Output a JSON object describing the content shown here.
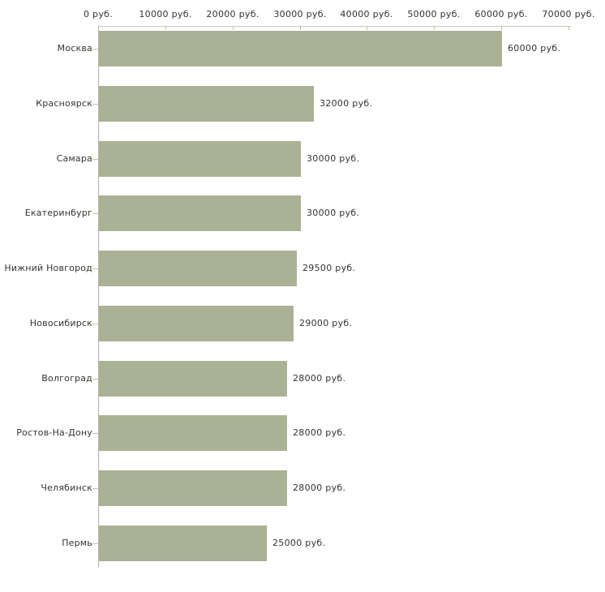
{
  "chart_data": {
    "type": "bar",
    "orientation": "horizontal",
    "title": "",
    "xlabel": "",
    "ylabel": "",
    "x_axis_position": "top",
    "xlim": [
      0,
      70000
    ],
    "grid": false,
    "legend": false,
    "x_ticks": [
      0,
      10000,
      20000,
      30000,
      40000,
      50000,
      60000,
      70000
    ],
    "x_tick_labels": [
      "0 руб.",
      "10000 руб.",
      "20000 руб.",
      "30000 руб.",
      "40000 руб.",
      "50000 руб.",
      "60000 руб.",
      "70000 руб."
    ],
    "categories": [
      "Москва",
      "Красноярск",
      "Самара",
      "Екатеринбург",
      "Нижний Новгород",
      "Новосибирск",
      "Волгоград",
      "Ростов-На-Дону",
      "Челябинск",
      "Пермь"
    ],
    "values": [
      60000,
      32000,
      30000,
      30000,
      29500,
      29000,
      28000,
      28000,
      28000,
      25000
    ],
    "value_labels": [
      "60000 руб.",
      "32000 руб.",
      "30000 руб.",
      "30000 руб.",
      "29500 руб.",
      "29000 руб.",
      "28000 руб.",
      "28000 руб.",
      "28000 руб.",
      "25000 руб."
    ],
    "colors": {
      "bar": "#abb194",
      "x_axis_line": "#c8c8c8",
      "y_axis_line": "#b0b0b0",
      "tick": "#c6c2a0",
      "text": "#333333",
      "background": "#ffffff"
    }
  }
}
